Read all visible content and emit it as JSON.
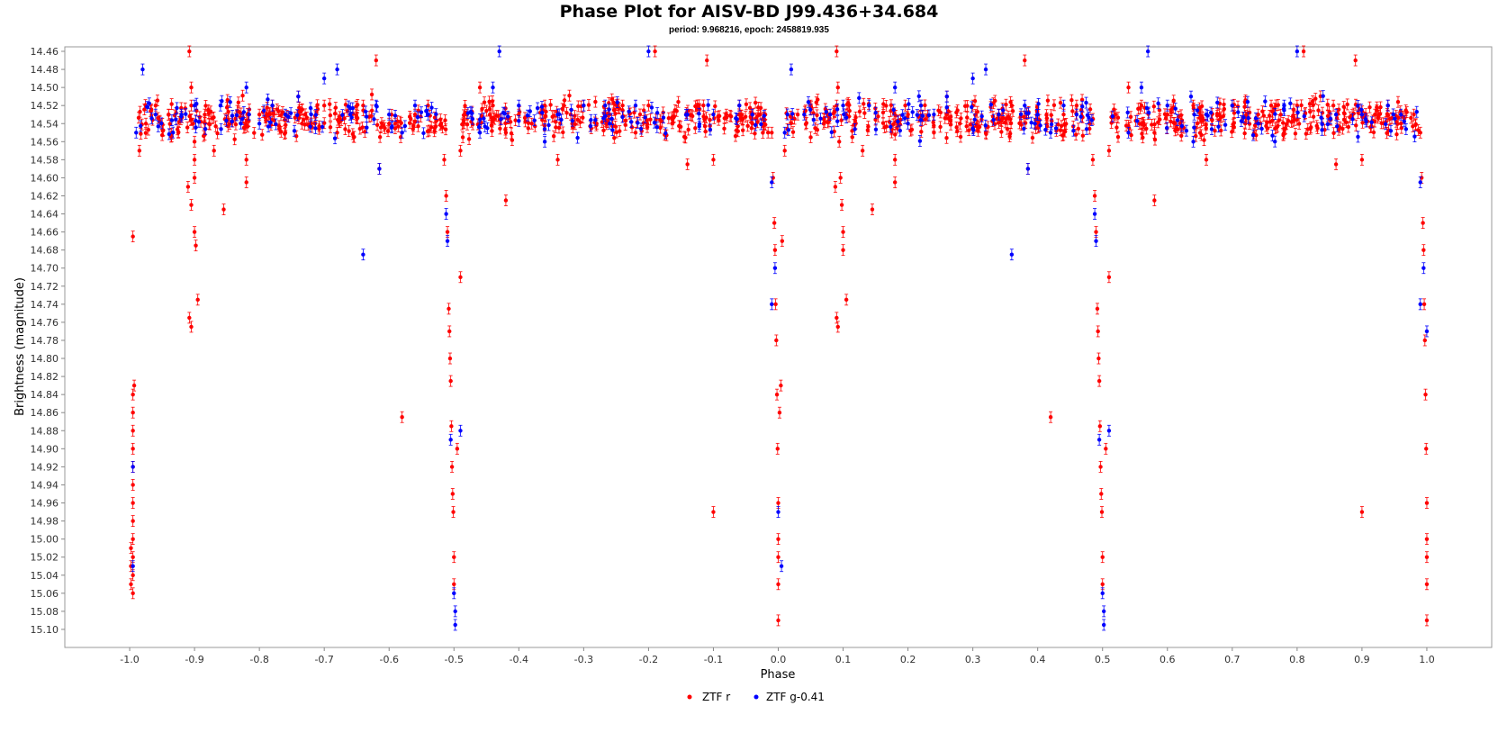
{
  "chart_data": {
    "type": "scatter",
    "title": "Phase Plot for AISV-BD J99.436+34.684",
    "subtitle": "period: 9.968216, epoch: 2458819.935",
    "xlabel": "Phase",
    "ylabel": "Brightness (magnitude)",
    "xlim": [
      -1.1,
      1.1
    ],
    "ylim": [
      14.455,
      15.12
    ],
    "y_inverted": true,
    "x_ticks": [
      "-1.0",
      "-0.9",
      "-0.8",
      "-0.7",
      "-0.6",
      "-0.5",
      "-0.4",
      "-0.3",
      "-0.2",
      "-0.1",
      "0.0",
      "0.1",
      "0.2",
      "0.3",
      "0.4",
      "0.5",
      "0.6",
      "0.7",
      "0.8",
      "0.9",
      "1.0"
    ],
    "y_ticks": [
      "14.46",
      "14.48",
      "14.50",
      "14.52",
      "14.54",
      "14.56",
      "14.58",
      "14.60",
      "14.62",
      "14.64",
      "14.66",
      "14.68",
      "14.70",
      "14.72",
      "14.74",
      "14.76",
      "14.78",
      "14.80",
      "14.82",
      "14.84",
      "14.86",
      "14.88",
      "14.90",
      "14.92",
      "14.94",
      "14.96",
      "14.98",
      "15.00",
      "15.02",
      "15.04",
      "15.06",
      "15.08",
      "15.10"
    ],
    "grid": false,
    "legend_position": "bottom",
    "error_bars": true,
    "series": [
      {
        "name": "ZTF r",
        "color": "#ff0000",
        "points": [
          [
            -0.995,
            15.06
          ],
          [
            -0.995,
            15.04
          ],
          [
            -0.995,
            15.02
          ],
          [
            -0.995,
            15.0
          ],
          [
            -0.995,
            14.98
          ],
          [
            -0.995,
            14.96
          ],
          [
            -0.995,
            14.94
          ],
          [
            -0.995,
            14.92
          ],
          [
            -0.995,
            14.9
          ],
          [
            -0.995,
            14.88
          ],
          [
            -0.995,
            14.86
          ],
          [
            -0.995,
            14.84
          ],
          [
            -0.993,
            14.83
          ],
          [
            -0.998,
            15.05
          ],
          [
            -0.998,
            15.03
          ],
          [
            -0.998,
            15.01
          ],
          [
            -0.995,
            14.665
          ],
          [
            -0.985,
            14.57
          ],
          [
            -0.975,
            14.54
          ],
          [
            -0.96,
            14.52
          ],
          [
            -0.94,
            14.53
          ],
          [
            -0.925,
            14.55
          ],
          [
            -0.908,
            14.46
          ],
          [
            -0.905,
            14.5
          ],
          [
            -0.905,
            14.52
          ],
          [
            -0.902,
            14.54
          ],
          [
            -0.9,
            14.56
          ],
          [
            -0.9,
            14.58
          ],
          [
            -0.91,
            14.61
          ],
          [
            -0.905,
            14.63
          ],
          [
            -0.9,
            14.66
          ],
          [
            -0.898,
            14.675
          ],
          [
            -0.895,
            14.735
          ],
          [
            -0.908,
            14.755
          ],
          [
            -0.905,
            14.765
          ],
          [
            -0.9,
            14.6
          ],
          [
            -0.87,
            14.57
          ],
          [
            -0.855,
            14.635
          ],
          [
            -0.82,
            14.58
          ],
          [
            -0.82,
            14.605
          ],
          [
            -0.8,
            14.53
          ],
          [
            -0.78,
            14.52
          ],
          [
            -0.76,
            14.55
          ],
          [
            -0.74,
            14.51
          ],
          [
            -0.72,
            14.54
          ],
          [
            -0.7,
            14.52
          ],
          [
            -0.68,
            14.55
          ],
          [
            -0.66,
            14.53
          ],
          [
            -0.64,
            14.52
          ],
          [
            -0.62,
            14.47
          ],
          [
            -0.615,
            14.59
          ],
          [
            -0.6,
            14.54
          ],
          [
            -0.58,
            14.865
          ],
          [
            -0.56,
            14.53
          ],
          [
            -0.54,
            14.52
          ],
          [
            -0.52,
            14.54
          ],
          [
            -0.515,
            14.58
          ],
          [
            -0.512,
            14.62
          ],
          [
            -0.51,
            14.66
          ],
          [
            -0.508,
            14.745
          ],
          [
            -0.507,
            14.77
          ],
          [
            -0.506,
            14.8
          ],
          [
            -0.505,
            14.825
          ],
          [
            -0.504,
            14.875
          ],
          [
            -0.503,
            14.92
          ],
          [
            -0.502,
            14.95
          ],
          [
            -0.501,
            14.97
          ],
          [
            -0.5,
            15.02
          ],
          [
            -0.5,
            15.05
          ],
          [
            -0.495,
            14.9
          ],
          [
            -0.49,
            14.71
          ],
          [
            -0.49,
            14.57
          ],
          [
            -0.48,
            14.53
          ],
          [
            -0.46,
            14.5
          ],
          [
            -0.44,
            14.52
          ],
          [
            -0.42,
            14.55
          ],
          [
            -0.42,
            14.625
          ],
          [
            -0.4,
            14.53
          ],
          [
            -0.38,
            14.54
          ],
          [
            -0.36,
            14.52
          ],
          [
            -0.34,
            14.58
          ],
          [
            -0.32,
            14.53
          ],
          [
            -0.3,
            14.52
          ],
          [
            -0.28,
            14.54
          ],
          [
            -0.26,
            14.53
          ],
          [
            -0.24,
            14.52
          ],
          [
            -0.22,
            14.55
          ],
          [
            -0.2,
            14.52
          ],
          [
            -0.19,
            14.46
          ],
          [
            -0.14,
            14.585
          ],
          [
            -0.11,
            14.47
          ],
          [
            -0.1,
            14.58
          ],
          [
            -0.1,
            14.97
          ],
          [
            -0.08,
            14.53
          ],
          [
            -0.06,
            14.52
          ],
          [
            -0.04,
            14.54
          ],
          [
            -0.02,
            14.53
          ],
          [
            -0.01,
            14.55
          ],
          [
            -0.008,
            14.6
          ],
          [
            -0.006,
            14.65
          ],
          [
            -0.005,
            14.68
          ],
          [
            -0.004,
            14.74
          ],
          [
            -0.003,
            14.78
          ],
          [
            -0.002,
            14.84
          ],
          [
            -0.001,
            14.9
          ],
          [
            0.0,
            14.96
          ],
          [
            0.0,
            15.0
          ],
          [
            0.0,
            15.02
          ],
          [
            0.0,
            15.05
          ],
          [
            0.0,
            15.09
          ],
          [
            0.002,
            14.86
          ],
          [
            0.004,
            14.83
          ],
          [
            0.006,
            14.67
          ],
          [
            0.01,
            14.57
          ],
          [
            0.03,
            14.53
          ],
          [
            0.05,
            14.52
          ],
          [
            0.07,
            14.54
          ],
          [
            0.09,
            14.46
          ],
          [
            0.09,
            14.52
          ],
          [
            0.092,
            14.5
          ],
          [
            0.094,
            14.56
          ],
          [
            0.096,
            14.6
          ],
          [
            0.098,
            14.63
          ],
          [
            0.1,
            14.66
          ],
          [
            0.1,
            14.68
          ],
          [
            0.105,
            14.735
          ],
          [
            0.09,
            14.755
          ],
          [
            0.092,
            14.765
          ],
          [
            0.088,
            14.61
          ],
          [
            0.13,
            14.57
          ],
          [
            0.145,
            14.635
          ],
          [
            0.18,
            14.58
          ],
          [
            0.18,
            14.605
          ],
          [
            0.2,
            14.53
          ],
          [
            0.22,
            14.52
          ],
          [
            0.24,
            14.55
          ],
          [
            0.26,
            14.51
          ],
          [
            0.28,
            14.54
          ],
          [
            0.3,
            14.52
          ],
          [
            0.32,
            14.55
          ],
          [
            0.34,
            14.53
          ],
          [
            0.36,
            14.52
          ],
          [
            0.38,
            14.47
          ],
          [
            0.385,
            14.59
          ],
          [
            0.4,
            14.54
          ],
          [
            0.42,
            14.865
          ],
          [
            0.44,
            14.53
          ],
          [
            0.46,
            14.52
          ],
          [
            0.48,
            14.54
          ],
          [
            0.485,
            14.58
          ],
          [
            0.488,
            14.62
          ],
          [
            0.49,
            14.66
          ],
          [
            0.492,
            14.745
          ],
          [
            0.493,
            14.77
          ],
          [
            0.494,
            14.8
          ],
          [
            0.495,
            14.825
          ],
          [
            0.496,
            14.875
          ],
          [
            0.497,
            14.92
          ],
          [
            0.498,
            14.95
          ],
          [
            0.499,
            14.97
          ],
          [
            0.5,
            15.02
          ],
          [
            0.5,
            15.05
          ],
          [
            0.505,
            14.9
          ],
          [
            0.51,
            14.71
          ],
          [
            0.51,
            14.57
          ],
          [
            0.52,
            14.53
          ],
          [
            0.54,
            14.5
          ],
          [
            0.56,
            14.52
          ],
          [
            0.58,
            14.55
          ],
          [
            0.58,
            14.625
          ],
          [
            0.6,
            14.53
          ],
          [
            0.62,
            14.54
          ],
          [
            0.64,
            14.52
          ],
          [
            0.66,
            14.58
          ],
          [
            0.68,
            14.53
          ],
          [
            0.7,
            14.52
          ],
          [
            0.72,
            14.54
          ],
          [
            0.74,
            14.53
          ],
          [
            0.76,
            14.52
          ],
          [
            0.78,
            14.55
          ],
          [
            0.8,
            14.52
          ],
          [
            0.81,
            14.46
          ],
          [
            0.86,
            14.585
          ],
          [
            0.89,
            14.47
          ],
          [
            0.9,
            14.58
          ],
          [
            0.9,
            14.97
          ],
          [
            0.92,
            14.53
          ],
          [
            0.94,
            14.52
          ],
          [
            0.96,
            14.54
          ],
          [
            0.98,
            14.53
          ],
          [
            0.99,
            14.55
          ],
          [
            0.992,
            14.6
          ],
          [
            0.994,
            14.65
          ],
          [
            0.995,
            14.68
          ],
          [
            0.996,
            14.74
          ],
          [
            0.997,
            14.78
          ],
          [
            0.998,
            14.84
          ],
          [
            0.999,
            14.9
          ],
          [
            1.0,
            14.96
          ],
          [
            1.0,
            15.0
          ],
          [
            1.0,
            15.02
          ],
          [
            1.0,
            15.05
          ],
          [
            1.0,
            15.09
          ]
        ]
      },
      {
        "name": "ZTF g-0.41",
        "color": "#0000ff",
        "points": [
          [
            -0.995,
            15.03
          ],
          [
            -0.995,
            14.92
          ],
          [
            -0.99,
            14.55
          ],
          [
            -0.98,
            14.48
          ],
          [
            -0.96,
            14.53
          ],
          [
            -0.92,
            14.53
          ],
          [
            -0.9,
            14.52
          ],
          [
            -0.86,
            14.52
          ],
          [
            -0.82,
            14.5
          ],
          [
            -0.8,
            14.54
          ],
          [
            -0.78,
            14.52
          ],
          [
            -0.76,
            14.53
          ],
          [
            -0.74,
            14.51
          ],
          [
            -0.7,
            14.49
          ],
          [
            -0.68,
            14.48
          ],
          [
            -0.66,
            14.53
          ],
          [
            -0.64,
            14.685
          ],
          [
            -0.62,
            14.52
          ],
          [
            -0.615,
            14.59
          ],
          [
            -0.6,
            14.53
          ],
          [
            -0.58,
            14.55
          ],
          [
            -0.56,
            14.52
          ],
          [
            -0.54,
            14.53
          ],
          [
            -0.512,
            14.64
          ],
          [
            -0.51,
            14.67
          ],
          [
            -0.505,
            14.89
          ],
          [
            -0.5,
            15.06
          ],
          [
            -0.498,
            15.08
          ],
          [
            -0.498,
            15.095
          ],
          [
            -0.49,
            14.88
          ],
          [
            -0.46,
            14.55
          ],
          [
            -0.44,
            14.5
          ],
          [
            -0.43,
            14.46
          ],
          [
            -0.4,
            14.52
          ],
          [
            -0.36,
            14.56
          ],
          [
            -0.34,
            14.53
          ],
          [
            -0.3,
            14.52
          ],
          [
            -0.26,
            14.54
          ],
          [
            -0.22,
            14.52
          ],
          [
            -0.2,
            14.46
          ],
          [
            -0.14,
            14.53
          ],
          [
            -0.1,
            14.53
          ],
          [
            -0.06,
            14.52
          ],
          [
            -0.04,
            14.53
          ],
          [
            -0.01,
            14.605
          ],
          [
            -0.005,
            14.7
          ],
          [
            -0.01,
            14.74
          ],
          [
            0.0,
            14.97
          ],
          [
            0.005,
            15.03
          ],
          [
            0.01,
            14.55
          ],
          [
            0.02,
            14.48
          ],
          [
            0.04,
            14.53
          ],
          [
            0.08,
            14.53
          ],
          [
            0.1,
            14.52
          ],
          [
            0.14,
            14.52
          ],
          [
            0.18,
            14.5
          ],
          [
            0.2,
            14.54
          ],
          [
            0.22,
            14.52
          ],
          [
            0.24,
            14.53
          ],
          [
            0.26,
            14.51
          ],
          [
            0.3,
            14.49
          ],
          [
            0.32,
            14.48
          ],
          [
            0.34,
            14.53
          ],
          [
            0.36,
            14.685
          ],
          [
            0.38,
            14.52
          ],
          [
            0.385,
            14.59
          ],
          [
            0.4,
            14.53
          ],
          [
            0.42,
            14.55
          ],
          [
            0.44,
            14.52
          ],
          [
            0.46,
            14.53
          ],
          [
            0.488,
            14.64
          ],
          [
            0.49,
            14.67
          ],
          [
            0.495,
            14.89
          ],
          [
            0.5,
            15.06
          ],
          [
            0.502,
            15.08
          ],
          [
            0.502,
            15.095
          ],
          [
            0.51,
            14.88
          ],
          [
            0.54,
            14.55
          ],
          [
            0.56,
            14.5
          ],
          [
            0.57,
            14.46
          ],
          [
            0.6,
            14.52
          ],
          [
            0.64,
            14.56
          ],
          [
            0.66,
            14.53
          ],
          [
            0.7,
            14.52
          ],
          [
            0.74,
            14.54
          ],
          [
            0.78,
            14.52
          ],
          [
            0.8,
            14.46
          ],
          [
            0.86,
            14.53
          ],
          [
            0.9,
            14.53
          ],
          [
            0.94,
            14.52
          ],
          [
            0.96,
            14.53
          ],
          [
            0.99,
            14.605
          ],
          [
            0.995,
            14.7
          ],
          [
            0.99,
            14.74
          ],
          [
            1.0,
            14.77
          ]
        ]
      }
    ]
  }
}
